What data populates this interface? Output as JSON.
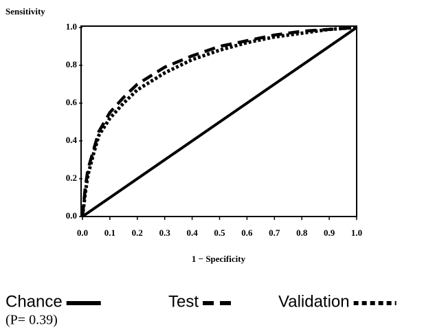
{
  "chart_data": {
    "type": "line",
    "y_label": "Sensitivity",
    "x_label": "1 − Specificity",
    "annotation": "(P= 0.39)",
    "xlim": [
      0,
      1
    ],
    "ylim": [
      0,
      1
    ],
    "xticks": [
      {
        "value": 0,
        "label": "0.0"
      },
      0.1,
      0.2,
      0.3,
      0.4,
      0.5,
      0.6,
      0.7,
      0.8,
      0.9,
      {
        "value": 1,
        "label": "1.0"
      }
    ],
    "yticks": [
      {
        "value": 0,
        "label": "0.0"
      },
      0.2,
      0.4,
      0.6,
      0.8,
      {
        "value": 1,
        "label": "1.0"
      }
    ],
    "grid": false,
    "legend": "bottom",
    "series": [
      {
        "name": "Chance",
        "color": "#000000",
        "line_style": "solid",
        "x": [
          0,
          1
        ],
        "values": [
          0,
          1
        ]
      },
      {
        "name": "Test",
        "color": "#000000",
        "line_style": "dashed",
        "x": [
          0,
          0.01,
          0.02,
          0.04,
          0.06,
          0.1,
          0.15,
          0.2,
          0.3,
          0.4,
          0.5,
          0.6,
          0.7,
          0.8,
          0.9,
          1
        ],
        "values": [
          0,
          0.15,
          0.25,
          0.35,
          0.45,
          0.55,
          0.63,
          0.7,
          0.79,
          0.85,
          0.9,
          0.93,
          0.96,
          0.98,
          0.99,
          1
        ]
      },
      {
        "name": "Validation",
        "color": "#000000",
        "line_style": "dotted",
        "x": [
          0,
          0.01,
          0.02,
          0.04,
          0.06,
          0.1,
          0.15,
          0.2,
          0.3,
          0.4,
          0.5,
          0.6,
          0.7,
          0.8,
          0.9,
          1
        ],
        "values": [
          0,
          0.12,
          0.22,
          0.33,
          0.43,
          0.52,
          0.6,
          0.67,
          0.76,
          0.83,
          0.88,
          0.92,
          0.95,
          0.97,
          0.99,
          1
        ]
      }
    ]
  }
}
